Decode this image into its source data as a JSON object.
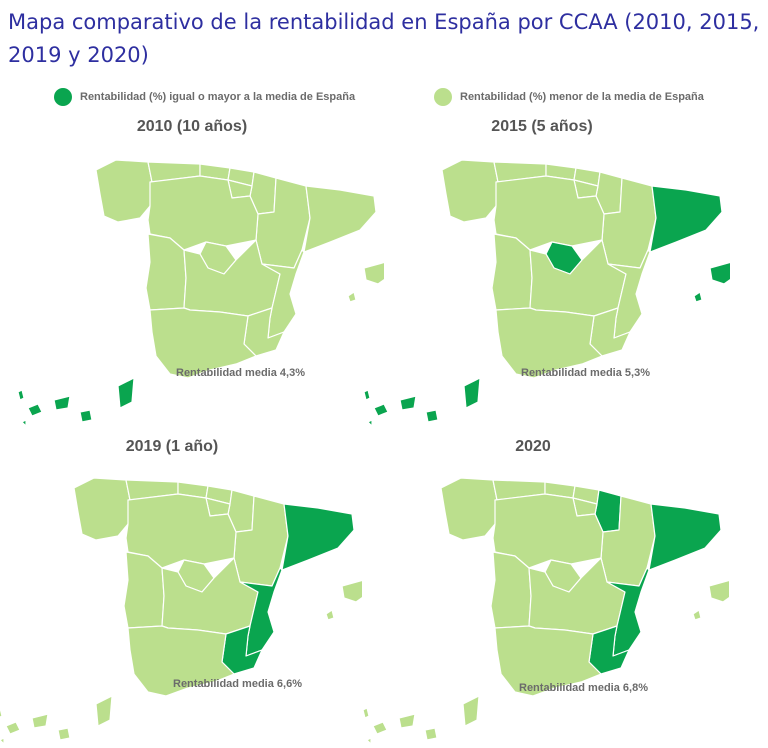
{
  "title": "Mapa comparativo de la rentabilidad en España por CCAA (2010, 2015, 2019 y 2020)",
  "colors": {
    "above": "#0aa54f",
    "below": "#bbdf8d",
    "border": "#ffffff"
  },
  "legend": [
    {
      "color": "#0aa54f",
      "label": "Rentabilidad (%) igual o mayor a la media de España"
    },
    {
      "color": "#bbdf8d",
      "label": "Rentabilidad (%) menor de la media de España"
    }
  ],
  "maps": [
    {
      "title": "2010 (10 años)",
      "average_label": "Rentabilidad media  4,3%",
      "highlighted": [
        "Canarias"
      ]
    },
    {
      "title": "2015 (5 años)",
      "average_label": "Rentabilidad media  5,3%",
      "highlighted": [
        "Cataluña",
        "Madrid",
        "Baleares",
        "Canarias"
      ]
    },
    {
      "title": "2019 (1 año)",
      "average_label": "Rentabilidad media  6,6%",
      "highlighted": [
        "Cataluña",
        "Comunidad Valenciana",
        "Murcia"
      ]
    },
    {
      "title": "2020",
      "average_label": "Rentabilidad media  6,8%",
      "highlighted": [
        "Navarra",
        "Cataluña",
        "Comunidad Valenciana",
        "Murcia"
      ]
    }
  ]
}
